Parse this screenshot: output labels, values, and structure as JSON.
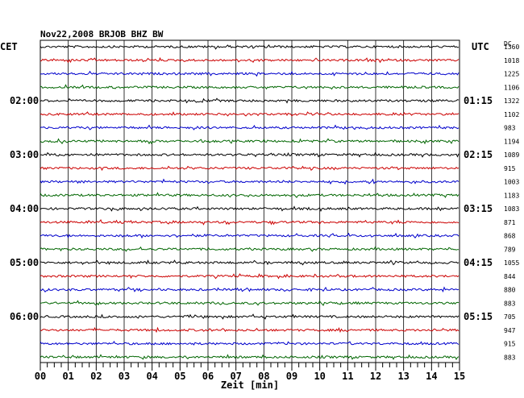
{
  "chart_data": {
    "type": "line",
    "title": "Nov22,2008   BRJOB BHZ BW",
    "left_timezone": "CET",
    "right_timezone": "UTC",
    "offset_header": "DC",
    "xlabel": "Zeit [min]",
    "xlim": [
      0,
      15
    ],
    "x_ticks": [
      "00",
      "01",
      "02",
      "03",
      "04",
      "05",
      "06",
      "07",
      "08",
      "09",
      "10",
      "11",
      "12",
      "13",
      "14",
      "15"
    ],
    "row_interval_minutes": 15,
    "trace_colors": [
      "#000000",
      "#cc0000",
      "#0000cc",
      "#006600"
    ],
    "left_time_labels": [
      {
        "row": 4,
        "label": "02:00"
      },
      {
        "row": 8,
        "label": "03:00"
      },
      {
        "row": 12,
        "label": "04:00"
      },
      {
        "row": 16,
        "label": "05:00"
      },
      {
        "row": 20,
        "label": "06:00"
      }
    ],
    "right_time_labels": [
      {
        "row": 4,
        "label": "01:15"
      },
      {
        "row": 8,
        "label": "02:15"
      },
      {
        "row": 12,
        "label": "03:15"
      },
      {
        "row": 16,
        "label": "04:15"
      },
      {
        "row": 20,
        "label": "05:15"
      }
    ],
    "dc_offsets": [
      "1360",
      "1018",
      "1225",
      "1106",
      "1322",
      "1102",
      "983",
      "1194",
      "1089",
      "915",
      "1003",
      "1183",
      "1083",
      "871",
      "868",
      "789",
      "1055",
      "844",
      "880",
      "883",
      "705",
      "947",
      "915",
      "883"
    ],
    "grid": true
  }
}
